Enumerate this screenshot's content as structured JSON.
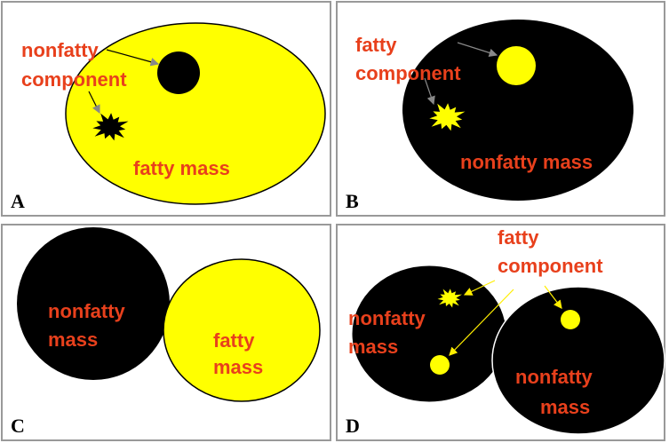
{
  "panels": [
    {
      "letter": "A",
      "labels": [
        "nonfatty",
        "component",
        "fatty mass"
      ]
    },
    {
      "letter": "B",
      "labels": [
        "fatty",
        "component",
        "nonfatty mass"
      ]
    },
    {
      "letter": "C",
      "labels": [
        "nonfatty",
        "mass",
        "fatty",
        "mass"
      ]
    },
    {
      "letter": "D",
      "labels": [
        "fatty",
        "component",
        "nonfatty",
        "mass",
        "nonfatty",
        "mass"
      ]
    }
  ]
}
